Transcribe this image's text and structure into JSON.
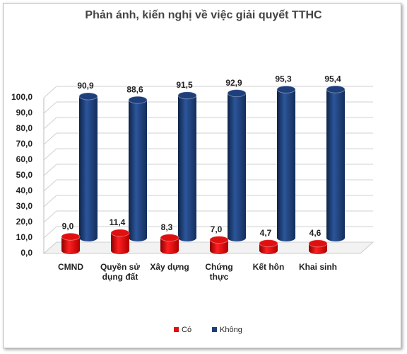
{
  "chart_data": {
    "type": "bar3d",
    "title": "Phản ánh, kiến nghị về việc giải quyết TTHC",
    "categories": [
      "CMND",
      "Quyền sử dụng đất",
      "Xây dựng",
      "Chứng thực",
      "Kết hôn",
      "Khai sinh"
    ],
    "series": [
      {
        "name": "Có",
        "color": "#e01010",
        "values": [
          9.0,
          11.4,
          8.3,
          7.0,
          4.7,
          4.6
        ],
        "value_labels": [
          "9,0",
          "11,4",
          "8,3",
          "7,0",
          "4,7",
          "4,6"
        ]
      },
      {
        "name": "Không",
        "color": "#1e3f7c",
        "values": [
          90.9,
          88.6,
          91.5,
          92.9,
          95.3,
          95.4
        ],
        "value_labels": [
          "90,9",
          "88,6",
          "91,5",
          "92,9",
          "95,3",
          "95,4"
        ]
      }
    ],
    "ylim": [
      0,
      100
    ],
    "yticks": [
      {
        "value": 0,
        "label": "0,0"
      },
      {
        "value": 10,
        "label": "10,0"
      },
      {
        "value": 20,
        "label": "20,0"
      },
      {
        "value": 30,
        "label": "30,0"
      },
      {
        "value": 40,
        "label": "40,0"
      },
      {
        "value": 50,
        "label": "50,0"
      },
      {
        "value": 60,
        "label": "60,0"
      },
      {
        "value": 70,
        "label": "70,0"
      },
      {
        "value": 80,
        "label": "80,0"
      },
      {
        "value": 90,
        "label": "90,0"
      },
      {
        "value": 100,
        "label": "100,0"
      }
    ],
    "grid": true,
    "legend": "bottom"
  }
}
